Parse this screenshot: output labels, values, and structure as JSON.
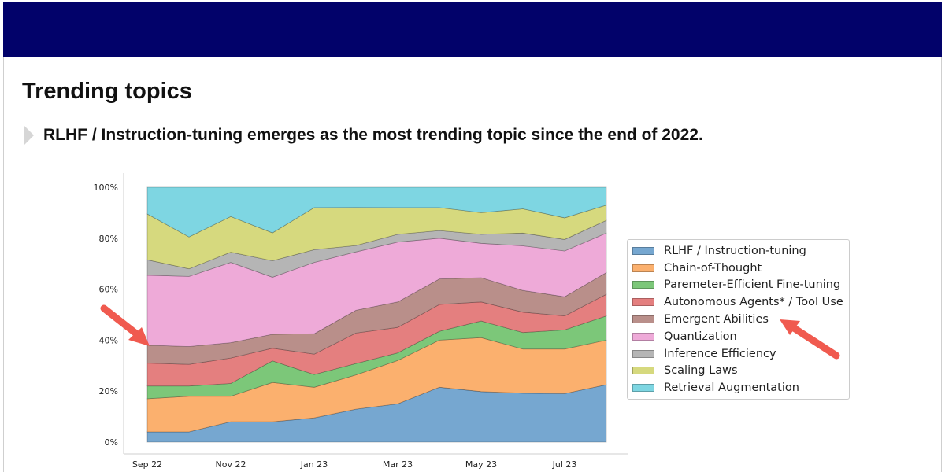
{
  "slide": {
    "title": "Trending topics",
    "bullet": "RLHF / Instruction-tuning emerges as the most trending topic since the end of 2022."
  },
  "colors": {
    "header_bar": "#02026a",
    "annotation_arrow": "#f05a4f"
  },
  "chart_data": {
    "type": "area",
    "stacked": true,
    "normalized": true,
    "x": [
      "Sep 22",
      "Oct 22",
      "Nov 22",
      "Dec 22",
      "Jan 23",
      "Feb 23",
      "Mar 23",
      "Apr 23",
      "May 23",
      "Jun 23",
      "Jul 23",
      "Aug 23"
    ],
    "xticks": [
      "Sep 22",
      "Nov 22",
      "Jan 23",
      "Mar 23",
      "May 23",
      "Jul 23"
    ],
    "yticks": [
      "0%",
      "20%",
      "40%",
      "60%",
      "80%",
      "100%"
    ],
    "ylim": [
      0,
      100
    ],
    "legend_position": "right",
    "series": [
      {
        "name": "RLHF / Instruction-tuning",
        "color": "#76a7d0",
        "values": [
          4,
          4,
          8,
          8,
          9.5,
          13,
          15,
          21.5,
          19.8,
          19.2,
          19,
          22.5
        ]
      },
      {
        "name": "Chain-of-Thought",
        "color": "#fbb06e",
        "values": [
          13,
          14,
          10,
          15.5,
          12,
          13.5,
          17,
          18.5,
          21.2,
          17.3,
          17.5,
          17.5
        ]
      },
      {
        "name": "Paremeter-Efficient Fine-tuning",
        "color": "#7cc779",
        "values": [
          5,
          4,
          5,
          8.5,
          5,
          4.5,
          3,
          3.5,
          6.5,
          6.5,
          7.5,
          9.5
        ]
      },
      {
        "name": "Autonomous Agents* / Tool Use",
        "color": "#e47f7f",
        "values": [
          9,
          8.5,
          10,
          5,
          8,
          12,
          10,
          10.5,
          7.5,
          8,
          5.5,
          8.5
        ]
      },
      {
        "name": "Emergent Abilities",
        "color": "#b98f8a",
        "values": [
          7,
          7,
          6,
          5.5,
          8,
          9,
          10,
          10,
          9.5,
          8.5,
          7.5,
          8.5
        ]
      },
      {
        "name": "Quantization",
        "color": "#eeaad8",
        "values": [
          27.5,
          27.5,
          31.5,
          22.5,
          28,
          23,
          23.5,
          16,
          13.5,
          17.5,
          18,
          15.5
        ]
      },
      {
        "name": "Inference Efficiency",
        "color": "#b5b5b5",
        "values": [
          6,
          3,
          4,
          6.5,
          5,
          2.5,
          3,
          3,
          3.5,
          5,
          4.5,
          5
        ]
      },
      {
        "name": "Scaling Laws",
        "color": "#d6d97e",
        "values": [
          18,
          12.5,
          14,
          11,
          16.5,
          15,
          10.5,
          9,
          8.5,
          9.5,
          8.5,
          6
        ]
      },
      {
        "name": "Retrieval Augmentation",
        "color": "#7ed6e2",
        "values": [
          10.5,
          19.5,
          11.5,
          18,
          8,
          8,
          8,
          8,
          10,
          8.5,
          12,
          7
        ]
      }
    ]
  }
}
